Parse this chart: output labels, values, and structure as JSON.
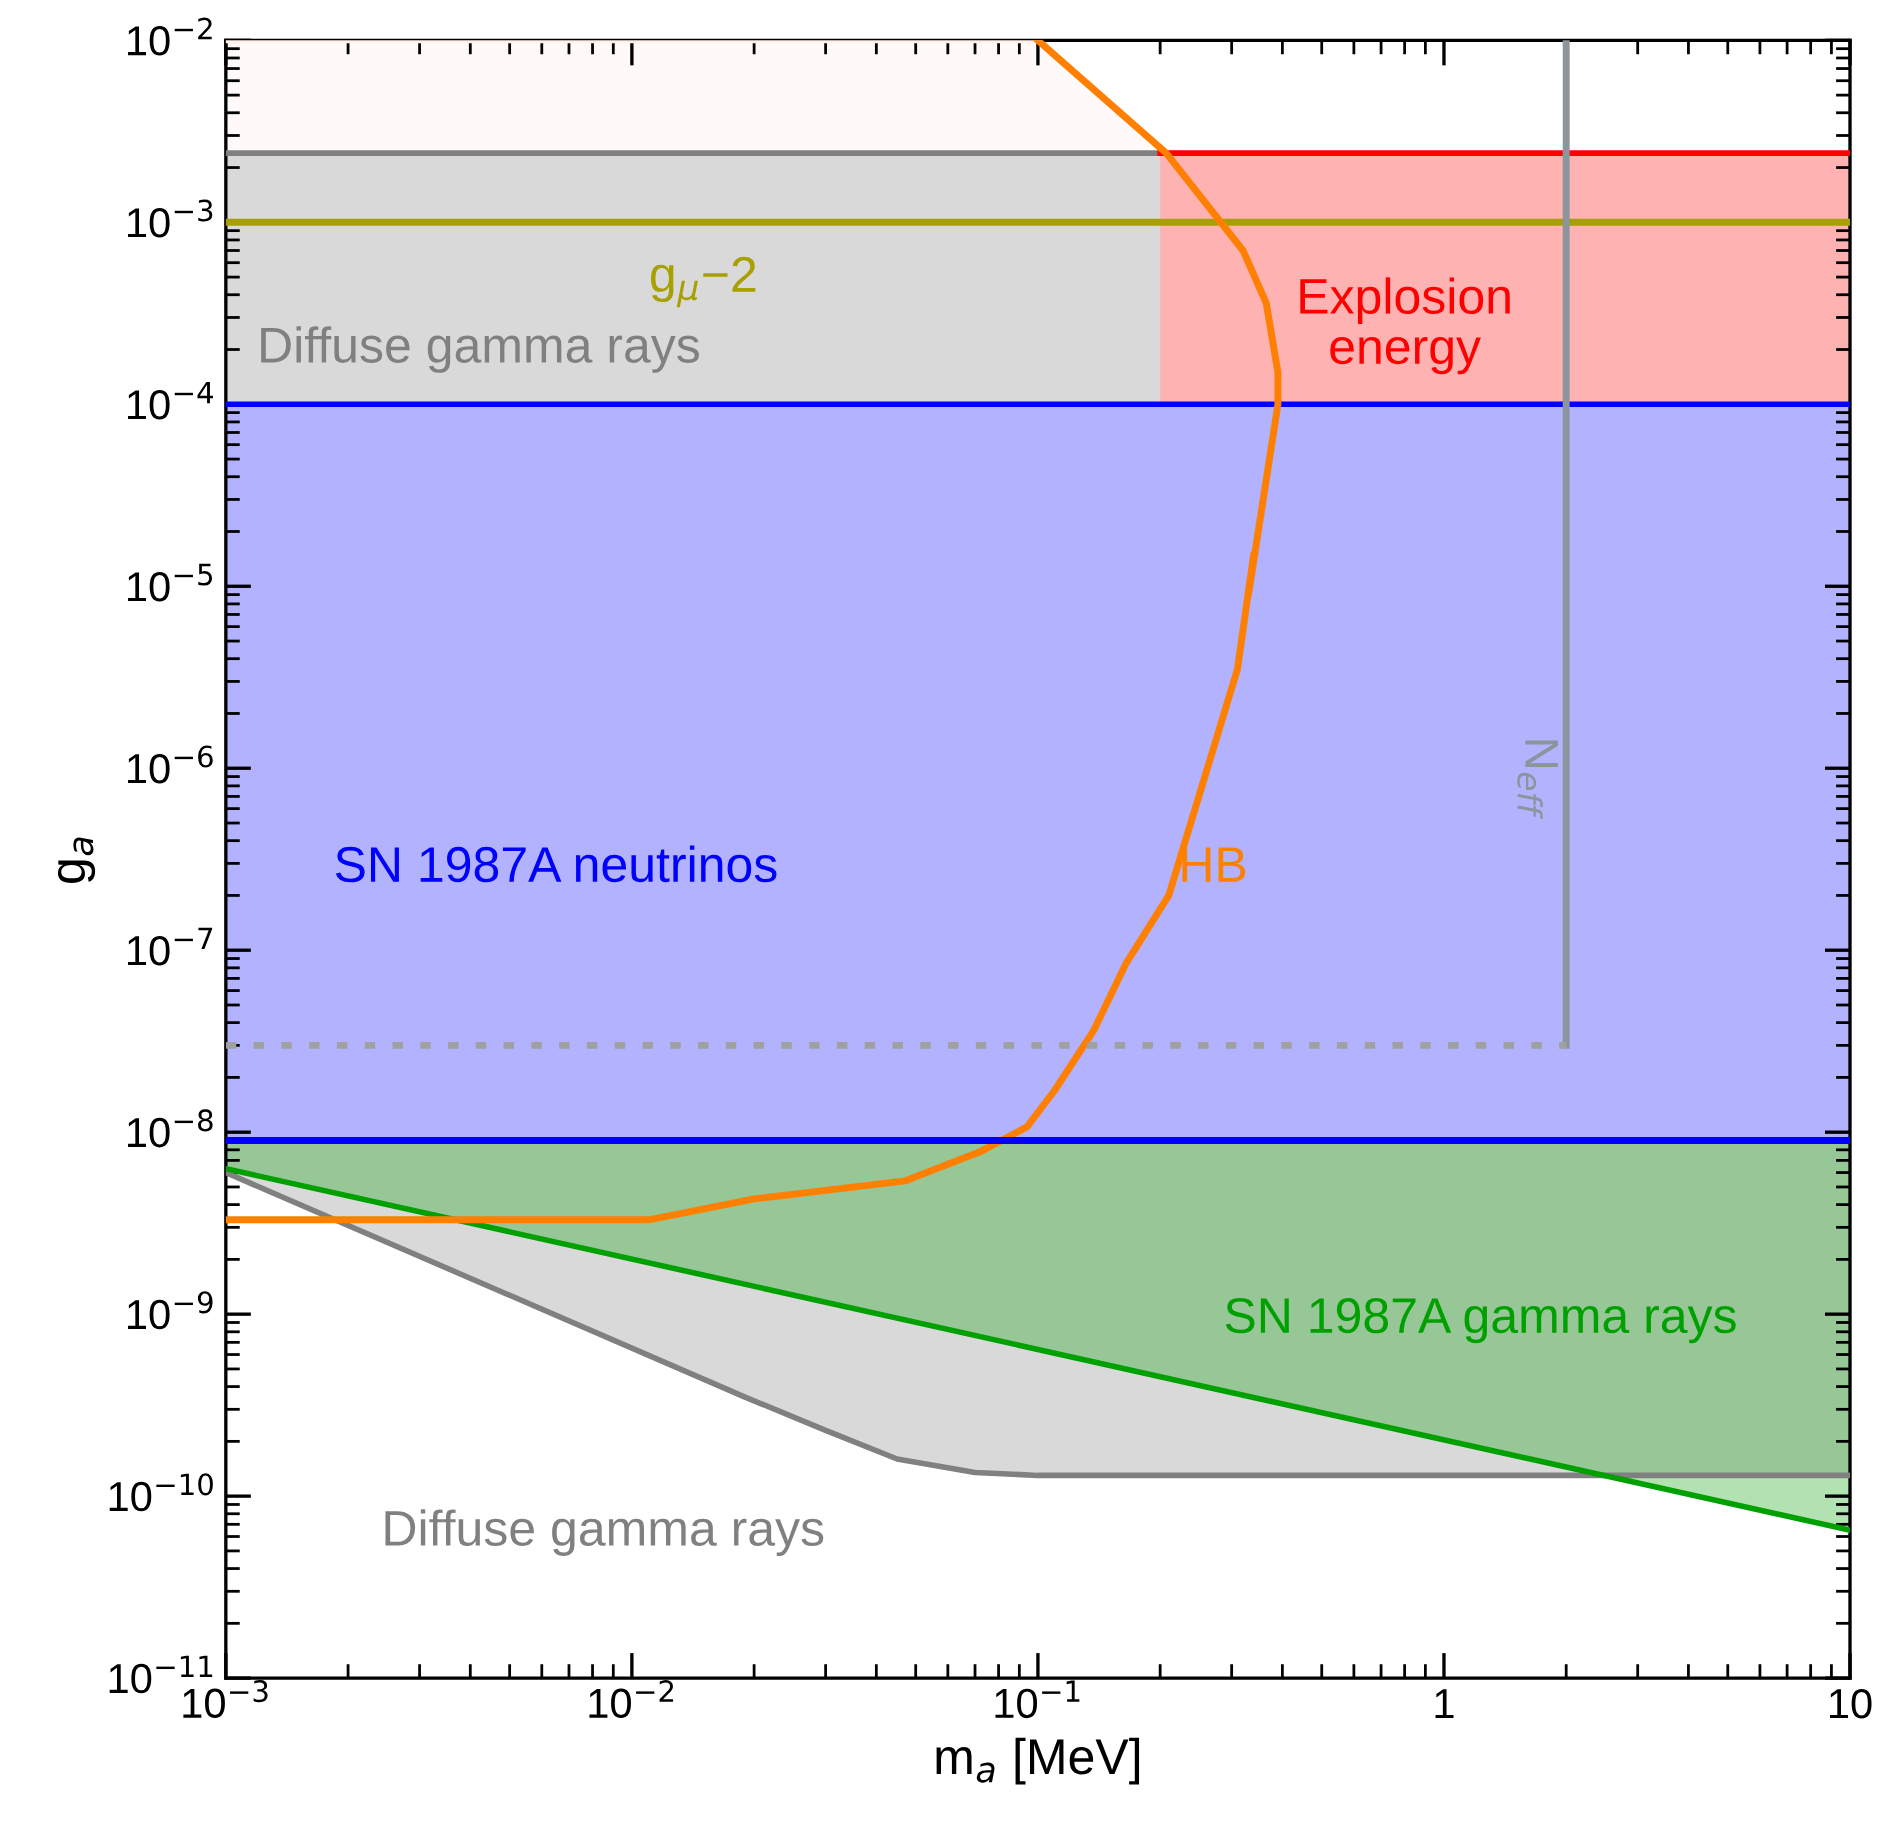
{
  "chart_data": {
    "type": "line",
    "xlabel": "m$_{a}$ [MeV]",
    "ylabel": "g$_{a}$",
    "log": "xy",
    "grid": false,
    "xlim": [
      0.001,
      10
    ],
    "ylim": [
      1e-11,
      0.01
    ],
    "xticks": [
      {
        "value": 0.001,
        "label": "10$^{−3}$"
      },
      {
        "value": 0.01,
        "label": "10$^{−2}$"
      },
      {
        "value": 0.1,
        "label": "10$^{−1}$"
      },
      1,
      10
    ],
    "yticks": [
      {
        "value": 1e-11,
        "label": "10$^{−11}$"
      },
      {
        "value": 1e-10,
        "label": "10$^{−10}$"
      },
      {
        "value": 1e-09,
        "label": "10$^{−9}$"
      },
      {
        "value": 1e-08,
        "label": "10$^{−8}$"
      },
      {
        "value": 1e-07,
        "label": "10$^{−7}$"
      },
      {
        "value": 1e-06,
        "label": "10$^{−6}$"
      },
      {
        "value": 1e-05,
        "label": "10$^{−5}$"
      },
      {
        "value": 0.0001,
        "label": "10$^{−4}$"
      },
      {
        "value": 0.001,
        "label": "10$^{−3}$"
      },
      {
        "value": 0.01,
        "label": "10$^{−2}$"
      }
    ],
    "series": [
      {
        "color": "#a8a000",
        "x": [
          0.001,
          10
        ],
        "values": [
          0.001,
          0.001
        ]
      },
      {
        "color": "#808080",
        "x": [
          0.001,
          0.2
        ],
        "values": [
          0.0024,
          0.0024
        ],
        "lower": [
          0.0001,
          0.0001
        ],
        "upper": [
          0.0024,
          0.0024
        ]
      },
      {
        "color": "#ff0000",
        "x": [
          0.2,
          10
        ],
        "values": [
          0.0024,
          0.0024
        ],
        "lower": [
          0.0001,
          0.0001
        ],
        "upper": [
          0.0024,
          0.0024
        ]
      },
      {
        "color": "#0000ff",
        "x": [
          0.001,
          10
        ],
        "values": [
          0.0001,
          0.0001
        ],
        "lower": [
          9e-09,
          9e-09
        ],
        "upper": [
          0.0001,
          0.0001
        ]
      },
      {
        "color": "#ff7f00",
        "x": [
          0.001,
          0.011,
          0.02,
          0.047,
          0.072,
          0.094,
          0.11,
          0.137,
          0.165,
          0.21,
          0.31,
          0.34,
          0.33,
          0.39,
          0.39,
          0.365,
          0.32,
          0.207,
          0.1
        ],
        "values": [
          3.3e-09,
          3.3e-09,
          4.3e-09,
          5.4e-09,
          7.8e-09,
          1.07e-08,
          1.7e-08,
          3.6e-08,
          8.5e-08,
          2e-07,
          3.5e-06,
          1.5e-05,
          9e-06,
          0.0001,
          0.00015,
          0.00036,
          0.0007,
          0.0024,
          0.01
        ]
      },
      {
        "color": "#8c949c",
        "x": [
          2,
          2
        ],
        "values": [
          0.01,
          3e-08
        ]
      },
      {
        "color": "#808080",
        "x": [
          0.001,
          0.019,
          0.03,
          0.045,
          0.07,
          0.1,
          10
        ],
        "values": [
          6e-09,
          3.5e-10,
          2.3e-10,
          1.6e-10,
          1.35e-10,
          1.3e-10,
          1.3e-10
        ],
        "lower": [
          6e-09,
          3.5e-10,
          2.3e-10,
          1.6e-10,
          1.35e-10,
          1.3e-10,
          1.3e-10
        ],
        "upper": [
          9e-09,
          9e-09,
          9e-09,
          9e-09,
          9e-09,
          9e-09,
          9e-09
        ]
      },
      {
        "color": "#00a000",
        "x": [
          0.001,
          10
        ],
        "values": [
          6.3e-09,
          6.5e-11
        ],
        "lower": [
          6.3e-09,
          6.5e-11
        ],
        "upper": [
          9e-09,
          9e-09
        ]
      },
      {
        "color": "#fff0ea",
        "x": [
          0.001,
          0.1,
          0.207
        ],
        "values": [
          0.01,
          0.01,
          0.0024
        ],
        "lower": [
          0.0024,
          0.0024,
          0.0024
        ],
        "upper": [
          0.01,
          0.01,
          0.0024
        ]
      },
      {
        "color": "#a0a0a0",
        "line_style": "dotted",
        "x": [
          0.001,
          2
        ],
        "values": [
          3e-08,
          3e-08
        ]
      },
      {
        "color": "#0000ff",
        "x": [
          0.001,
          10
        ],
        "values": [
          9e-09,
          9e-09
        ]
      }
    ],
    "annotations": [
      "g$_{μ}$−2",
      "Diffuse gamma rays",
      "Explosion\nenergy",
      "SN 1987A neutrinos",
      "HB",
      "N$_{eff}$",
      "Diffuse gamma rays",
      "SN 1987A gamma rays"
    ]
  }
}
